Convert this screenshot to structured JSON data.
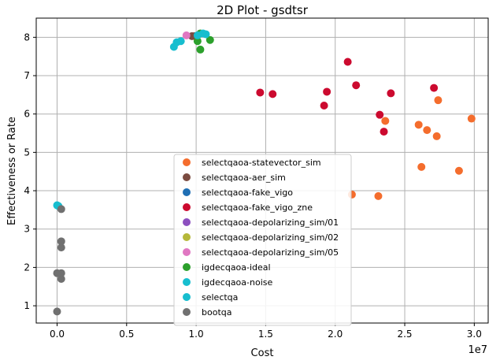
{
  "chart_data": {
    "type": "scatter",
    "title": "2D Plot - gsdtsr",
    "xlabel": "Cost",
    "ylabel": "Effectiveness or Rate",
    "x_offset_label": "1e7",
    "xlim": [
      -1500000,
      31000000
    ],
    "ylim": [
      0.55,
      8.5
    ],
    "xticks": [
      0,
      5000000,
      10000000,
      15000000,
      20000000,
      25000000,
      30000000
    ],
    "xtick_labels": [
      "0.0",
      "0.5",
      "1.0",
      "1.5",
      "2.0",
      "2.5",
      "3.0"
    ],
    "yticks": [
      1,
      2,
      3,
      4,
      5,
      6,
      7,
      8
    ],
    "ytick_labels": [
      "1",
      "2",
      "3",
      "4",
      "5",
      "6",
      "7",
      "8"
    ],
    "grid": true,
    "legend_position": "lower-center",
    "series": [
      {
        "name": "selectqaoa-statevector_sim",
        "color": "#f46d2d",
        "points": [
          [
            21200000,
            3.9
          ],
          [
            23100000,
            3.86
          ],
          [
            23600000,
            5.82
          ],
          [
            26000000,
            5.72
          ],
          [
            26600000,
            5.58
          ],
          [
            27300000,
            5.42
          ],
          [
            27400000,
            6.36
          ],
          [
            26200000,
            4.62
          ],
          [
            28900000,
            4.52
          ],
          [
            29800000,
            5.88
          ]
        ]
      },
      {
        "name": "selectqaoa-aer_sim",
        "color": "#7b4b40",
        "points": [
          [
            9700000,
            8.03
          ],
          [
            9900000,
            8.03
          ]
        ]
      },
      {
        "name": "selectqaoa-fake_vigo",
        "color": "#1f6fb4",
        "points": []
      },
      {
        "name": "selectqaoa-fake_vigo_zne",
        "color": "#cc0a2f",
        "points": [
          [
            14600000,
            6.56
          ],
          [
            15500000,
            6.52
          ],
          [
            19200000,
            6.22
          ],
          [
            19400000,
            6.58
          ],
          [
            20900000,
            7.36
          ],
          [
            21500000,
            6.75
          ],
          [
            23200000,
            5.98
          ],
          [
            23500000,
            5.54
          ],
          [
            24000000,
            6.54
          ],
          [
            27100000,
            6.68
          ]
        ]
      },
      {
        "name": "selectqaoa-depolarizing_sim/01",
        "color": "#8c4fbf",
        "points": []
      },
      {
        "name": "selectqaoa-depolarizing_sim/02",
        "color": "#b5b83a",
        "points": []
      },
      {
        "name": "selectqaoa-depolarizing_sim/05",
        "color": "#e077c2",
        "points": [
          [
            9300000,
            8.05
          ]
        ]
      },
      {
        "name": "igdecqaoa-ideal",
        "color": "#2ca02c",
        "points": [
          [
            10100000,
            7.9
          ],
          [
            10300000,
            7.68
          ],
          [
            10300000,
            8.1
          ],
          [
            11000000,
            7.93
          ]
        ]
      },
      {
        "name": "igdecqaoa-noise",
        "color": "#17becf",
        "points": [
          [
            8400000,
            7.75
          ],
          [
            8600000,
            7.87
          ],
          [
            8900000,
            7.9
          ],
          [
            10100000,
            8.05
          ],
          [
            10500000,
            8.1
          ],
          [
            10700000,
            8.08
          ],
          [
            0,
            3.62
          ],
          [
            100000,
            3.6
          ]
        ]
      },
      {
        "name": "selectqa",
        "color": "#17becf",
        "points": []
      },
      {
        "name": "bootqa",
        "color": "#707070",
        "points": [
          [
            0,
            0.85
          ],
          [
            0,
            1.85
          ],
          [
            300000,
            1.7
          ],
          [
            300000,
            1.85
          ],
          [
            300000,
            2.52
          ],
          [
            300000,
            2.68
          ],
          [
            300000,
            3.52
          ]
        ]
      }
    ]
  }
}
